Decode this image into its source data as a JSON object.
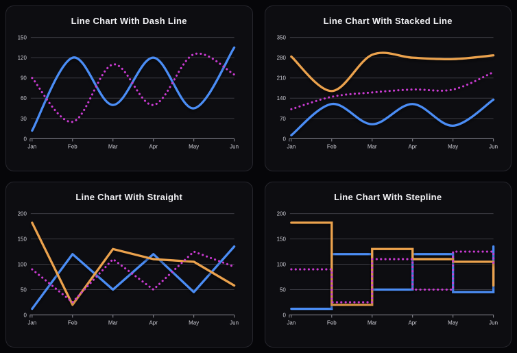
{
  "page": {
    "background_color": "#060609"
  },
  "cards": {
    "background_color": "#0d0d11",
    "border_color": "#26262d",
    "title_color": "#f3f3f6"
  },
  "axes": {
    "grid_color": "#3b3b42",
    "axis_color": "#8f8f98",
    "tick_label_color": "#cdcdd5"
  },
  "chart_data": [
    {
      "type": "line",
      "curve": "smooth",
      "stacked": false,
      "title": "Line Chart With Dash Line",
      "categories": [
        "Jan",
        "Feb",
        "Mar",
        "Apr",
        "May",
        "Jun"
      ],
      "y_ticks": [
        0,
        30,
        60,
        90,
        120,
        150
      ],
      "ylim": [
        0,
        150
      ],
      "grid": true,
      "legend": "none",
      "series": [
        {
          "color": "#4b8df5",
          "line_style": "solid",
          "values": [
            12,
            120,
            50,
            120,
            45,
            135
          ]
        },
        {
          "color": "#c93ad1",
          "line_style": "dotted",
          "values": [
            90,
            25,
            110,
            50,
            125,
            95
          ]
        }
      ]
    },
    {
      "type": "line",
      "curve": "smooth",
      "stacked": true,
      "title": "Line Chart With Stacked Line",
      "categories": [
        "Jan",
        "Feb",
        "Mar",
        "Apr",
        "May",
        "Jun"
      ],
      "y_ticks": [
        0,
        70,
        140,
        210,
        280,
        350
      ],
      "ylim": [
        0,
        350
      ],
      "grid": true,
      "legend": "none",
      "series": [
        {
          "color": "#4b8df5",
          "line_style": "solid",
          "values": [
            12,
            120,
            50,
            120,
            45,
            135
          ]
        },
        {
          "color": "#c93ad1",
          "line_style": "dotted",
          "values": [
            90,
            25,
            110,
            50,
            125,
            95
          ]
        },
        {
          "color": "#eba24e",
          "line_style": "solid",
          "values": [
            182,
            20,
            130,
            110,
            105,
            58
          ]
        }
      ]
    },
    {
      "type": "line",
      "curve": "straight",
      "stacked": false,
      "title": "Line Chart With Straight",
      "categories": [
        "Jan",
        "Feb",
        "Mar",
        "Apr",
        "May",
        "Jun"
      ],
      "y_ticks": [
        0,
        50,
        100,
        150,
        200
      ],
      "ylim": [
        0,
        200
      ],
      "grid": true,
      "legend": "none",
      "series": [
        {
          "color": "#4b8df5",
          "line_style": "solid",
          "values": [
            12,
            120,
            50,
            120,
            45,
            135
          ]
        },
        {
          "color": "#eba24e",
          "line_style": "solid",
          "values": [
            182,
            20,
            130,
            110,
            105,
            58
          ]
        },
        {
          "color": "#c93ad1",
          "line_style": "dotted",
          "values": [
            90,
            25,
            110,
            50,
            125,
            95
          ]
        }
      ]
    },
    {
      "type": "line",
      "curve": "stepline",
      "stacked": false,
      "title": "Line Chart With Stepline",
      "categories": [
        "Jan",
        "Feb",
        "Mar",
        "Apr",
        "May",
        "Jun"
      ],
      "y_ticks": [
        0,
        50,
        100,
        150,
        200
      ],
      "ylim": [
        0,
        200
      ],
      "grid": true,
      "legend": "none",
      "series": [
        {
          "color": "#4b8df5",
          "line_style": "solid",
          "values": [
            12,
            120,
            50,
            120,
            45,
            135
          ]
        },
        {
          "color": "#eba24e",
          "line_style": "solid",
          "values": [
            182,
            20,
            130,
            110,
            105,
            58
          ]
        },
        {
          "color": "#c93ad1",
          "line_style": "dotted",
          "values": [
            90,
            25,
            110,
            50,
            125,
            95
          ]
        }
      ]
    }
  ]
}
